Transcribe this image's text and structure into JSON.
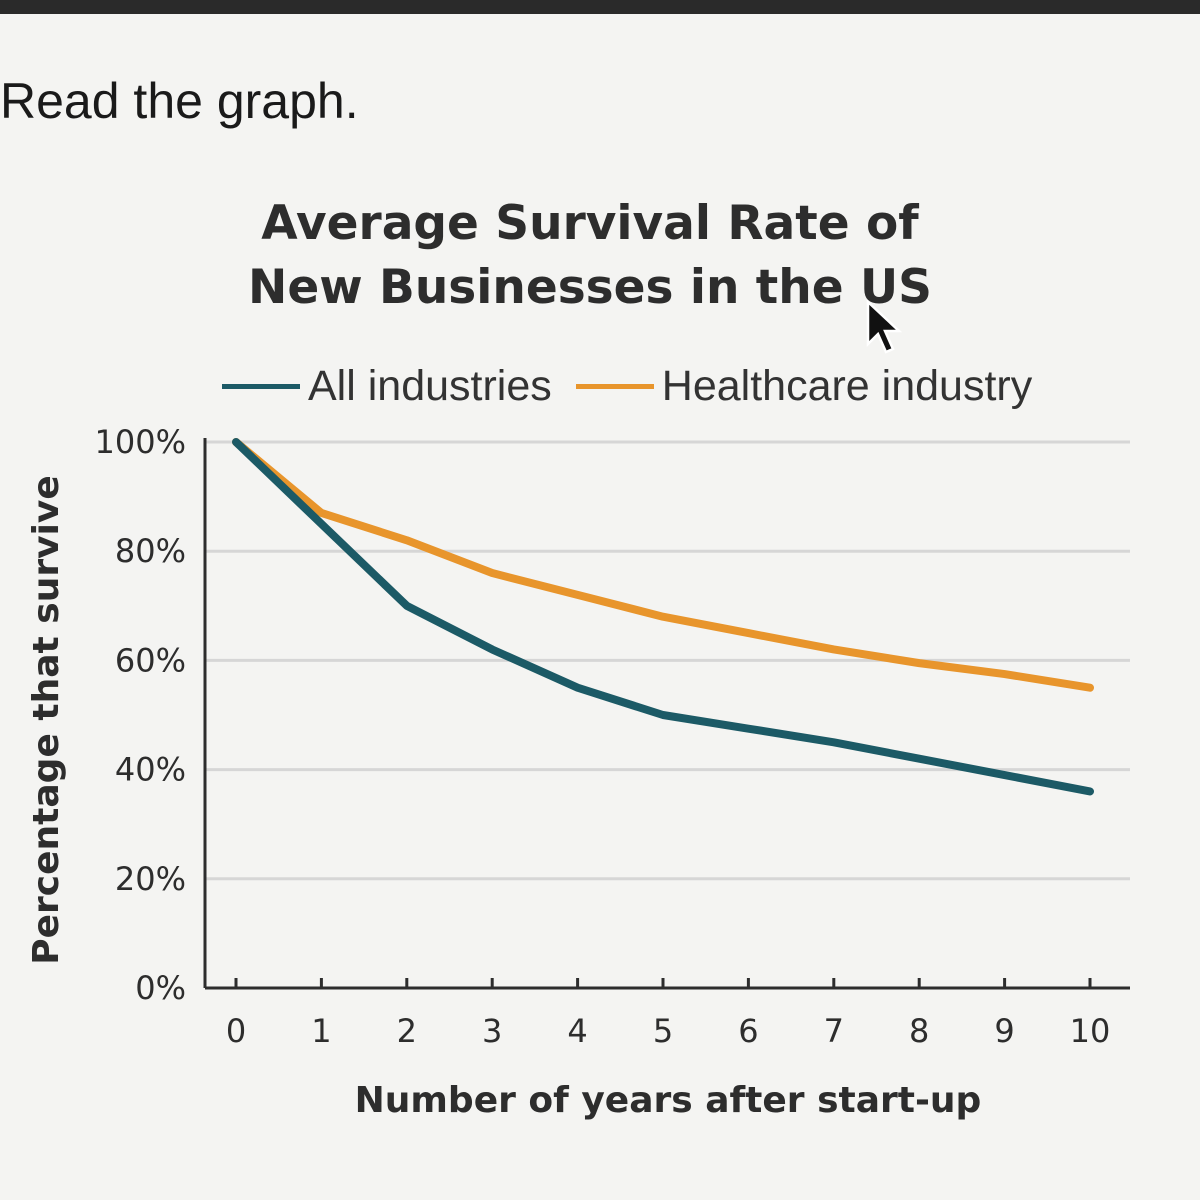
{
  "page": {
    "instruction": "Read the graph."
  },
  "colors": {
    "all_industries": "#1c5a66",
    "healthcare": "#e8952c",
    "grid": "#d6d6d6",
    "axis": "#2d2d2d"
  },
  "chart_data": {
    "type": "line",
    "title_line1": "Average Survival Rate of",
    "title_line2": "New Businesses in the US",
    "xlabel": "Number of years after start-up",
    "ylabel": "Percentage that survive",
    "x": [
      0,
      1,
      2,
      3,
      4,
      5,
      6,
      7,
      8,
      9,
      10
    ],
    "x_tick_labels": [
      "0",
      "1",
      "2",
      "3",
      "4",
      "5",
      "6",
      "7",
      "8",
      "9",
      "10"
    ],
    "y_tick_labels": [
      "0%",
      "20%",
      "40%",
      "60%",
      "80%",
      "100%"
    ],
    "y_ticks": [
      0,
      20,
      40,
      60,
      80,
      100
    ],
    "xlim": [
      0,
      10
    ],
    "ylim": [
      0,
      100
    ],
    "grid": true,
    "legend_position": "top",
    "series": [
      {
        "name": "All industries",
        "color": "#1c5a66",
        "values": [
          100,
          85,
          70,
          62,
          55,
          50,
          47.5,
          45,
          42,
          39,
          36
        ]
      },
      {
        "name": "Healthcare industry",
        "color": "#e8952c",
        "values": [
          100,
          87,
          82,
          76,
          72,
          68,
          65,
          62,
          59.5,
          57.5,
          55
        ]
      }
    ]
  }
}
